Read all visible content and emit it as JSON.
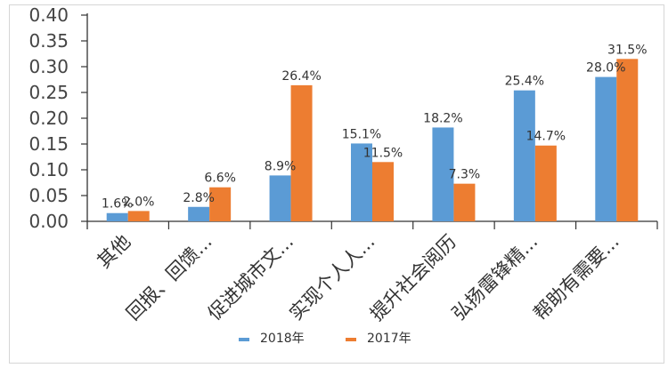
{
  "chart_data": {
    "type": "bar",
    "categories": [
      "其他",
      "回报、回馈...",
      "促进城市文...",
      "实现个人人...",
      "提升社会阅历",
      "弘扬雷锋精...",
      "帮助有需要..."
    ],
    "series": [
      {
        "name": "2018年",
        "color": "#5b9bd5",
        "values": [
          0.016,
          0.028,
          0.089,
          0.151,
          0.182,
          0.254,
          0.28
        ],
        "labels": [
          "1.6%",
          "2.8%",
          "8.9%",
          "15.1%",
          "18.2%",
          "25.4%",
          "28.0%"
        ]
      },
      {
        "name": "2017年",
        "color": "#ed7d31",
        "values": [
          0.02,
          0.066,
          0.264,
          0.115,
          0.073,
          0.147,
          0.315
        ],
        "labels": [
          "2.0%",
          "6.6%",
          "26.4%",
          "11.5%",
          "7.3%",
          "14.7%",
          "31.5%"
        ]
      }
    ],
    "ylim": [
      0,
      0.4
    ],
    "yticks": [
      "0.00",
      "0.05",
      "0.10",
      "0.15",
      "0.20",
      "0.25",
      "0.30",
      "0.35",
      "0.40"
    ],
    "grid": false,
    "legend": "bottom-center"
  }
}
